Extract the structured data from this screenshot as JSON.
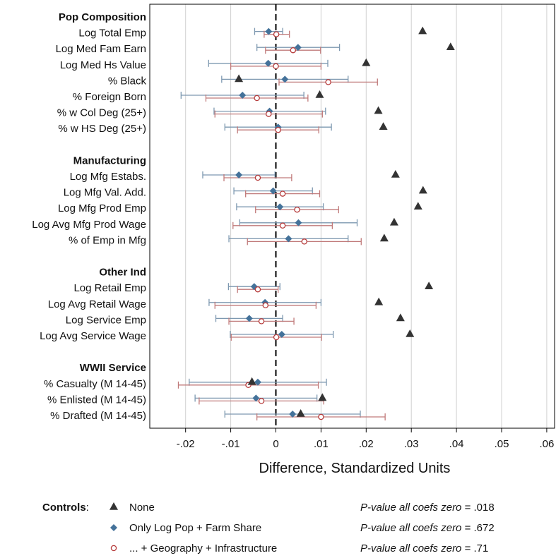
{
  "chart_data": {
    "type": "scatter",
    "subtype": "coefficient-plot-horizontal-with-error-bars",
    "xlabel": "Difference, Standardized Units",
    "xlim": [
      -0.029,
      0.062
    ],
    "xticks": [
      {
        "value": -0.02,
        "label": "-.02"
      },
      {
        "value": -0.01,
        "label": "-.01"
      },
      {
        "value": 0,
        "label": "0"
      },
      {
        "value": 0.01,
        "label": ".01"
      },
      {
        "value": 0.02,
        "label": ".02"
      },
      {
        "value": 0.03,
        "label": ".03"
      },
      {
        "value": 0.04,
        "label": ".04"
      },
      {
        "value": 0.05,
        "label": ".05"
      },
      {
        "value": 0.06,
        "label": ".06"
      }
    ],
    "grid": true,
    "zero_line": "dashed",
    "groups": [
      {
        "title": "Pop Composition",
        "rows": [
          {
            "label": "Log Total Emp",
            "none": 0.0325,
            "popfarm": {
              "est": -0.0016,
              "lo": -0.0047,
              "hi": 0.0015
            },
            "geo": {
              "est": 0.0001,
              "lo": -0.0026,
              "hi": 0.003
            }
          },
          {
            "label": "Log Med Fam Earn",
            "none": 0.0387,
            "popfarm": {
              "est": 0.0049,
              "lo": -0.0042,
              "hi": 0.0141
            },
            "geo": {
              "est": 0.0038,
              "lo": -0.0023,
              "hi": 0.0099
            }
          },
          {
            "label": "Log Med Hs Value",
            "none": 0.02,
            "popfarm": {
              "est": -0.0017,
              "lo": -0.0149,
              "hi": 0.0115
            },
            "geo": {
              "est": 0.0,
              "lo": -0.01,
              "hi": 0.01
            }
          },
          {
            "label": "% Black",
            "none": -0.0082,
            "popfarm": {
              "est": 0.002,
              "lo": -0.012,
              "hi": 0.016
            },
            "geo": {
              "est": 0.0116,
              "lo": 0.0007,
              "hi": 0.0225
            }
          },
          {
            "label": "% Foreign Born",
            "none": 0.0097,
            "popfarm": {
              "est": -0.0074,
              "lo": -0.021,
              "hi": 0.0062
            },
            "geo": {
              "est": -0.0042,
              "lo": -0.0155,
              "hi": 0.0071
            }
          },
          {
            "label": "% w Col Deg (25+)",
            "none": 0.0227,
            "popfarm": {
              "est": -0.0014,
              "lo": -0.0137,
              "hi": 0.011
            },
            "geo": {
              "est": -0.0016,
              "lo": -0.0135,
              "hi": 0.0103
            }
          },
          {
            "label": "% w HS Deg (25+)",
            "none": 0.0238,
            "popfarm": {
              "est": 0.0005,
              "lo": -0.0113,
              "hi": 0.0123
            },
            "geo": {
              "est": 0.0005,
              "lo": -0.0085,
              "hi": 0.0095
            }
          }
        ]
      },
      {
        "title": "Manufacturing",
        "rows": [
          {
            "label": "Log Mfg Estabs.",
            "none": 0.0265,
            "popfarm": {
              "est": -0.0082,
              "lo": -0.0162,
              "hi": -0.0002
            },
            "geo": {
              "est": -0.004,
              "lo": -0.0115,
              "hi": 0.0035
            }
          },
          {
            "label": "Log Mfg Val. Add.",
            "none": 0.0326,
            "popfarm": {
              "est": -0.0006,
              "lo": -0.0093,
              "hi": 0.0081
            },
            "geo": {
              "est": 0.0015,
              "lo": -0.0067,
              "hi": 0.0097
            }
          },
          {
            "label": "Log Mfg Prod Emp",
            "none": 0.0315,
            "popfarm": {
              "est": 0.0009,
              "lo": -0.0087,
              "hi": 0.0105
            },
            "geo": {
              "est": 0.0047,
              "lo": -0.0045,
              "hi": 0.0139
            }
          },
          {
            "label": "Log Avg Mfg Prod Wage",
            "none": 0.0262,
            "popfarm": {
              "est": 0.005,
              "lo": -0.008,
              "hi": 0.018
            },
            "geo": {
              "est": 0.0015,
              "lo": -0.0095,
              "hi": 0.0125
            }
          },
          {
            "label": "% of Emp in Mfg",
            "none": 0.024,
            "popfarm": {
              "est": 0.0028,
              "lo": -0.0104,
              "hi": 0.016
            },
            "geo": {
              "est": 0.0063,
              "lo": -0.0063,
              "hi": 0.0189
            }
          }
        ]
      },
      {
        "title": "Other Ind",
        "rows": [
          {
            "label": "Log Retail Emp",
            "none": 0.0339,
            "popfarm": {
              "est": -0.0048,
              "lo": -0.0105,
              "hi": 0.0009
            },
            "geo": {
              "est": -0.004,
              "lo": -0.0085,
              "hi": 0.0005
            }
          },
          {
            "label": "Log Avg Retail Wage",
            "none": 0.0228,
            "popfarm": {
              "est": -0.0024,
              "lo": -0.0148,
              "hi": 0.01
            },
            "geo": {
              "est": -0.0023,
              "lo": -0.0135,
              "hi": 0.0089
            }
          },
          {
            "label": "Log Service Emp",
            "none": 0.0276,
            "popfarm": {
              "est": -0.0059,
              "lo": -0.0133,
              "hi": 0.0015
            },
            "geo": {
              "est": -0.0032,
              "lo": -0.0104,
              "hi": 0.004
            }
          },
          {
            "label": "Log Avg Service Wage",
            "none": 0.0297,
            "popfarm": {
              "est": 0.0013,
              "lo": -0.0101,
              "hi": 0.0127
            },
            "geo": {
              "est": 0.0001,
              "lo": -0.0099,
              "hi": 0.0101
            }
          }
        ]
      },
      {
        "title": "WWII Service",
        "rows": [
          {
            "label": "% Casualty (M 14-45)",
            "none": -0.0053,
            "popfarm": {
              "est": -0.004,
              "lo": -0.0192,
              "hi": 0.0112
            },
            "geo": {
              "est": -0.0061,
              "lo": -0.0216,
              "hi": 0.0094
            }
          },
          {
            "label": "% Enlisted (M 14-45)",
            "none": 0.0103,
            "popfarm": {
              "est": -0.0044,
              "lo": -0.0179,
              "hi": 0.0091
            },
            "geo": {
              "est": -0.0032,
              "lo": -0.017,
              "hi": 0.0106
            }
          },
          {
            "label": "% Drafted (M 14-45)",
            "none": 0.0055,
            "popfarm": {
              "est": 0.0037,
              "lo": -0.0113,
              "hi": 0.0187
            },
            "geo": {
              "est": 0.01,
              "lo": -0.0042,
              "hi": 0.0242
            }
          }
        ]
      }
    ],
    "legend": {
      "title": "Controls",
      "title_suffix": ":",
      "placement": "bottom",
      "entries": [
        {
          "series": "none",
          "label": "None",
          "marker": "triangle",
          "color": "#333333",
          "pvalue_text": "P-value all coefs zero",
          "pvalue": "= .018"
        },
        {
          "series": "popfarm",
          "label": "Only Log Pop + Farm Share",
          "marker": "diamond",
          "color": "#44729a",
          "pvalue_text": "P-value all coefs zero",
          "pvalue": "= .672"
        },
        {
          "series": "geo",
          "label": "... + Geography + Infrastructure",
          "marker": "hollow-circle",
          "color": "#b63b3b",
          "pvalue_text": "P-value all coefs zero",
          "pvalue": "= .71"
        }
      ]
    },
    "colors": {
      "none": "#333333",
      "popfarm_marker": "#44729a",
      "popfarm_bar": "#7d98b0",
      "geo": "#b63b3b",
      "geo_bar": "#c07a7a",
      "grid": "#d0d0d0",
      "axis": "#000000"
    }
  }
}
